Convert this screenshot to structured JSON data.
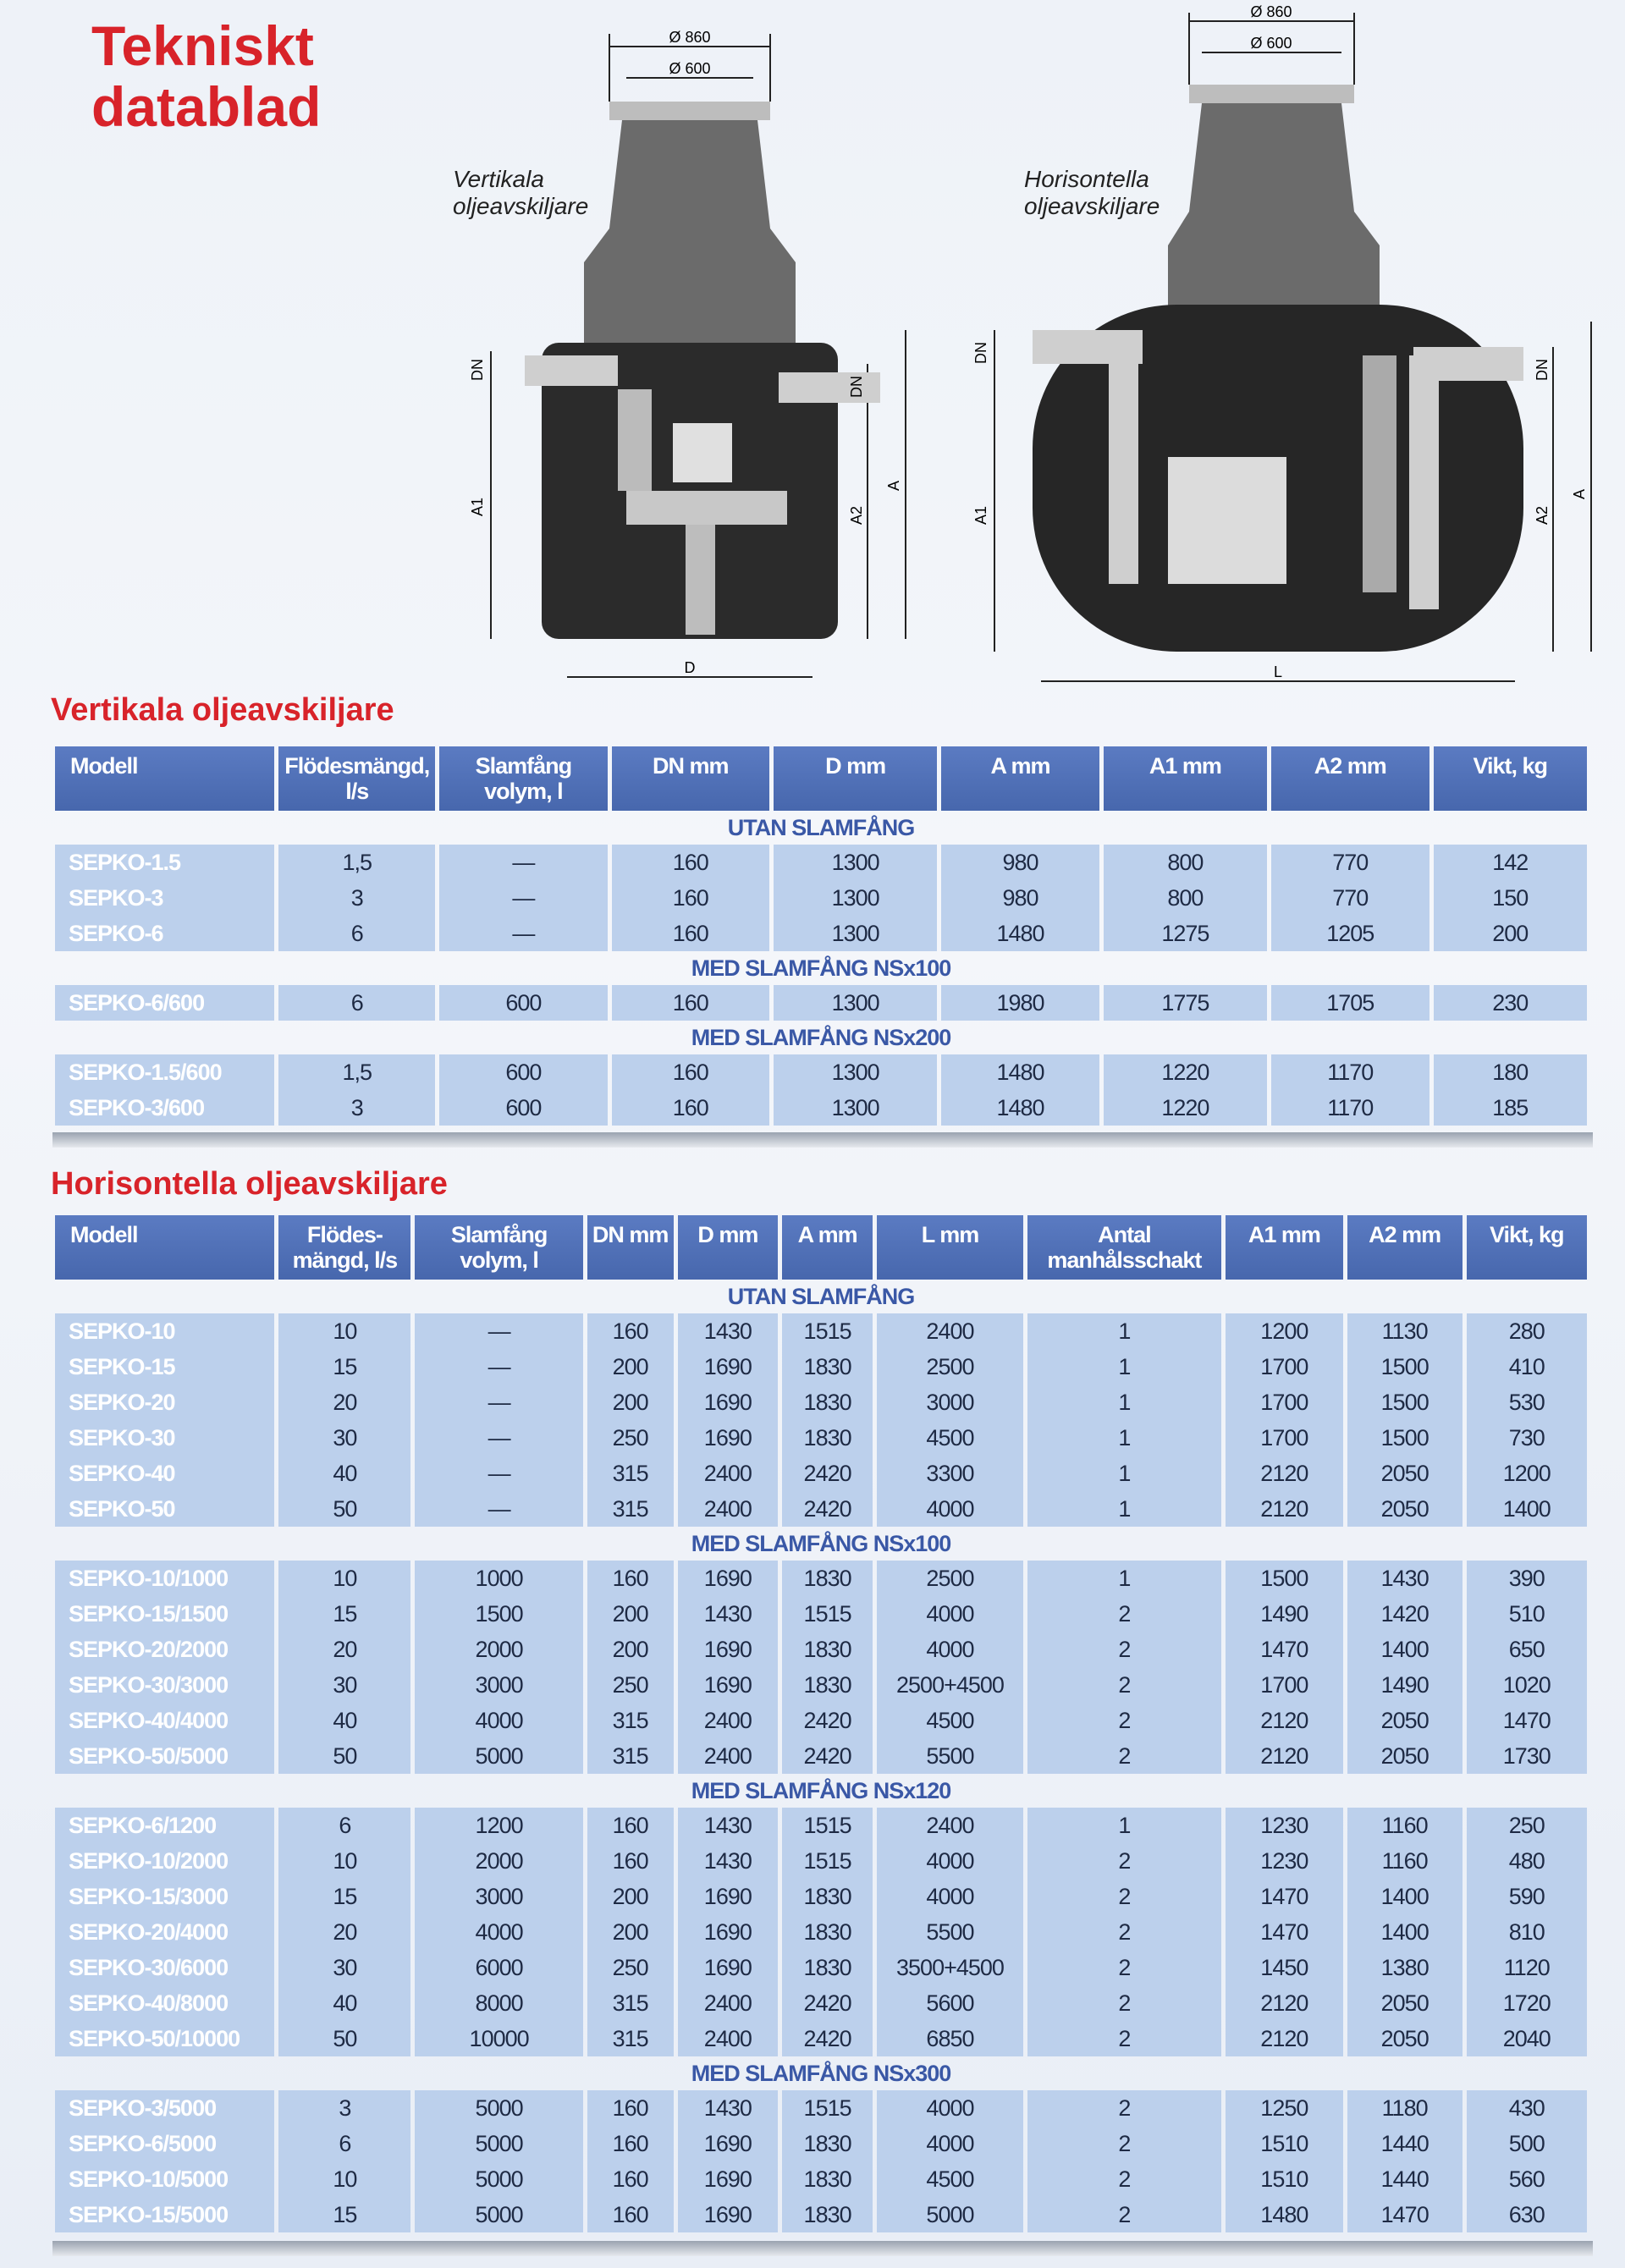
{
  "title": [
    "Tekniskt",
    "datablad"
  ],
  "diagrams": {
    "vertical": {
      "caption": [
        "Vertikala",
        "oljeavskiljare"
      ],
      "dim_outer": "Ø 860",
      "dim_inner": "Ø 600",
      "labels": {
        "dn_left": "DN",
        "dn_right": "DN",
        "a1": "A1",
        "a2": "A2",
        "a": "A",
        "d": "D"
      }
    },
    "horizontal": {
      "caption": [
        "Horisontella",
        "oljeavskiljare"
      ],
      "dim_outer": "Ø 860",
      "dim_inner": "Ø 600",
      "labels": {
        "dn_left": "DN",
        "dn_right": "DN",
        "a1": "A1",
        "a2": "A2",
        "a": "A",
        "l": "L"
      }
    }
  },
  "colors": {
    "title_red": "#d8232a",
    "header_blue": "#4f6fb6",
    "row_blue": "#bcd0ec",
    "group_blue": "#3a58a6"
  },
  "vertical_table": {
    "heading": "Vertikala oljeavskiljare",
    "columns": [
      "Modell",
      "Flödesmängd, l/s",
      "Slamfång volym, l",
      "DN mm",
      "D mm",
      "A mm",
      "A1 mm",
      "A2 mm",
      "Vikt, kg"
    ],
    "groups": [
      {
        "label": "UTAN SLAMFÅNG",
        "rows": [
          [
            "SEPKO-1.5",
            "1,5",
            "—",
            "160",
            "1300",
            "980",
            "800",
            "770",
            "142"
          ],
          [
            "SEPKO-3",
            "3",
            "—",
            "160",
            "1300",
            "980",
            "800",
            "770",
            "150"
          ],
          [
            "SEPKO-6",
            "6",
            "—",
            "160",
            "1300",
            "1480",
            "1275",
            "1205",
            "200"
          ]
        ]
      },
      {
        "label": "MED SLAMFÅNG NSx100",
        "rows": [
          [
            "SEPKO-6/600",
            "6",
            "600",
            "160",
            "1300",
            "1980",
            "1775",
            "1705",
            "230"
          ]
        ]
      },
      {
        "label": "MED SLAMFÅNG NSx200",
        "rows": [
          [
            "SEPKO-1.5/600",
            "1,5",
            "600",
            "160",
            "1300",
            "1480",
            "1220",
            "1170",
            "180"
          ],
          [
            "SEPKO-3/600",
            "3",
            "600",
            "160",
            "1300",
            "1480",
            "1220",
            "1170",
            "185"
          ]
        ]
      }
    ]
  },
  "horizontal_table": {
    "heading": "Horisontella oljeavskiljare",
    "columns": [
      "Modell",
      "Flödes-mängd, l/s",
      "Slamfång volym, l",
      "DN mm",
      "D mm",
      "A mm",
      "L mm",
      "Antal manhålsschakt",
      "A1 mm",
      "A2 mm",
      "Vikt, kg"
    ],
    "groups": [
      {
        "label": "UTAN SLAMFÅNG",
        "rows": [
          [
            "SEPKO-10",
            "10",
            "—",
            "160",
            "1430",
            "1515",
            "2400",
            "1",
            "1200",
            "1130",
            "280"
          ],
          [
            "SEPKO-15",
            "15",
            "—",
            "200",
            "1690",
            "1830",
            "2500",
            "1",
            "1700",
            "1500",
            "410"
          ],
          [
            "SEPKO-20",
            "20",
            "—",
            "200",
            "1690",
            "1830",
            "3000",
            "1",
            "1700",
            "1500",
            "530"
          ],
          [
            "SEPKO-30",
            "30",
            "—",
            "250",
            "1690",
            "1830",
            "4500",
            "1",
            "1700",
            "1500",
            "730"
          ],
          [
            "SEPKO-40",
            "40",
            "—",
            "315",
            "2400",
            "2420",
            "3300",
            "1",
            "2120",
            "2050",
            "1200"
          ],
          [
            "SEPKO-50",
            "50",
            "—",
            "315",
            "2400",
            "2420",
            "4000",
            "1",
            "2120",
            "2050",
            "1400"
          ]
        ]
      },
      {
        "label": "MED SLAMFÅNG NSx100",
        "rows": [
          [
            "SEPKO-10/1000",
            "10",
            "1000",
            "160",
            "1690",
            "1830",
            "2500",
            "1",
            "1500",
            "1430",
            "390"
          ],
          [
            "SEPKO-15/1500",
            "15",
            "1500",
            "200",
            "1430",
            "1515",
            "4000",
            "2",
            "1490",
            "1420",
            "510"
          ],
          [
            "SEPKO-20/2000",
            "20",
            "2000",
            "200",
            "1690",
            "1830",
            "4000",
            "2",
            "1470",
            "1400",
            "650"
          ],
          [
            "SEPKO-30/3000",
            "30",
            "3000",
            "250",
            "1690",
            "1830",
            "2500+4500",
            "2",
            "1700",
            "1490",
            "1020"
          ],
          [
            "SEPKO-40/4000",
            "40",
            "4000",
            "315",
            "2400",
            "2420",
            "4500",
            "2",
            "2120",
            "2050",
            "1470"
          ],
          [
            "SEPKO-50/5000",
            "50",
            "5000",
            "315",
            "2400",
            "2420",
            "5500",
            "2",
            "2120",
            "2050",
            "1730"
          ]
        ]
      },
      {
        "label": "MED SLAMFÅNG NSx120",
        "rows": [
          [
            "SEPKO-6/1200",
            "6",
            "1200",
            "160",
            "1430",
            "1515",
            "2400",
            "1",
            "1230",
            "1160",
            "250"
          ],
          [
            "SEPKO-10/2000",
            "10",
            "2000",
            "160",
            "1430",
            "1515",
            "4000",
            "2",
            "1230",
            "1160",
            "480"
          ],
          [
            "SEPKO-15/3000",
            "15",
            "3000",
            "200",
            "1690",
            "1830",
            "4000",
            "2",
            "1470",
            "1400",
            "590"
          ],
          [
            "SEPKO-20/4000",
            "20",
            "4000",
            "200",
            "1690",
            "1830",
            "5500",
            "2",
            "1470",
            "1400",
            "810"
          ],
          [
            "SEPKO-30/6000",
            "30",
            "6000",
            "250",
            "1690",
            "1830",
            "3500+4500",
            "2",
            "1450",
            "1380",
            "1120"
          ],
          [
            "SEPKO-40/8000",
            "40",
            "8000",
            "315",
            "2400",
            "2420",
            "5600",
            "2",
            "2120",
            "2050",
            "1720"
          ],
          [
            "SEPKO-50/10000",
            "50",
            "10000",
            "315",
            "2400",
            "2420",
            "6850",
            "2",
            "2120",
            "2050",
            "2040"
          ]
        ]
      },
      {
        "label": "MED SLAMFÅNG NSx300",
        "rows": [
          [
            "SEPKO-3/5000",
            "3",
            "5000",
            "160",
            "1430",
            "1515",
            "4000",
            "2",
            "1250",
            "1180",
            "430"
          ],
          [
            "SEPKO-6/5000",
            "6",
            "5000",
            "160",
            "1690",
            "1830",
            "4000",
            "2",
            "1510",
            "1440",
            "500"
          ],
          [
            "SEPKO-10/5000",
            "10",
            "5000",
            "160",
            "1690",
            "1830",
            "4500",
            "2",
            "1510",
            "1440",
            "560"
          ],
          [
            "SEPKO-15/5000",
            "15",
            "5000",
            "160",
            "1690",
            "1830",
            "5000",
            "2",
            "1480",
            "1470",
            "630"
          ]
        ]
      }
    ]
  }
}
